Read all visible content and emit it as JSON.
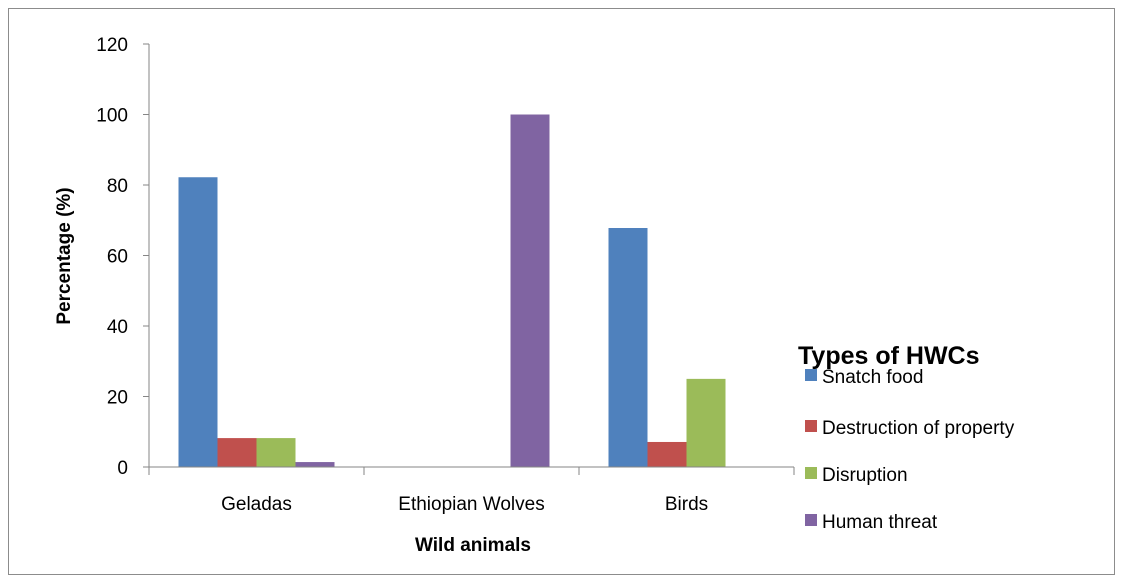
{
  "chart_data": {
    "type": "bar",
    "title": "",
    "xlabel": "Wild animals",
    "ylabel": "Percentage (%)",
    "ylim": [
      0,
      120
    ],
    "yticks": [
      "0",
      "20",
      "40",
      "60",
      "80",
      "100",
      "120"
    ],
    "grid": false,
    "legend": {
      "title": "Types of HWCs",
      "placement": "right"
    },
    "categories": [
      "Geladas",
      "Ethiopian Wolves",
      "Birds"
    ],
    "series": [
      {
        "name": "Snatch food",
        "color": "#4F81BD",
        "values": [
          82.2,
          0,
          67.8
        ]
      },
      {
        "name": "Destruction of property",
        "color": "#C0504D",
        "values": [
          8.2,
          0,
          7.1
        ]
      },
      {
        "name": "Disruption",
        "color": "#9BBB59",
        "values": [
          8.2,
          0,
          25.0
        ]
      },
      {
        "name": "Human threat",
        "color": "#8064A2",
        "values": [
          1.4,
          100,
          0
        ]
      }
    ]
  }
}
